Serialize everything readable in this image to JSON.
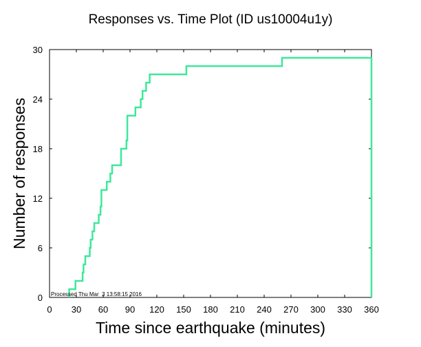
{
  "chart_data": {
    "type": "line",
    "step": true,
    "title": "Responses vs. Time Plot (ID us10004u1y)",
    "xlabel": "Time since earthquake (minutes)",
    "ylabel": "Number of responses",
    "xlim": [
      0,
      360
    ],
    "ylim": [
      0,
      30
    ],
    "xticks": [
      0,
      30,
      60,
      90,
      120,
      150,
      180,
      210,
      240,
      270,
      300,
      330,
      360
    ],
    "yticks": [
      0,
      6,
      12,
      18,
      24,
      30
    ],
    "xtick_labels": [
      "0",
      "30",
      "60",
      "90",
      "120",
      "150",
      "180",
      "210",
      "240",
      "270",
      "300",
      "330",
      "360"
    ],
    "ytick_labels": [
      "0",
      "6",
      "12",
      "18",
      "24",
      "30"
    ],
    "grid": false,
    "line_color": "#3de89a",
    "annotation": "Processed Thu Mar  3 13:58:15 2016",
    "x": [
      22,
      22,
      29,
      29,
      37,
      37,
      38,
      38,
      40,
      40,
      45,
      45,
      46,
      46,
      48,
      48,
      50,
      50,
      55,
      55,
      57,
      57,
      58,
      58,
      64,
      64,
      68,
      68,
      70,
      70,
      80,
      80,
      86,
      86,
      87,
      87,
      88,
      88,
      96,
      96,
      102,
      102,
      104,
      104,
      108,
      108,
      112,
      112,
      120,
      120,
      153,
      153,
      260,
      260,
      360,
      360
    ],
    "y": [
      0,
      1,
      1,
      2,
      2,
      3,
      3,
      4,
      4,
      5,
      5,
      6,
      6,
      7,
      7,
      8,
      8,
      9,
      9,
      10,
      10,
      11,
      11,
      13,
      13,
      14,
      14,
      15,
      15,
      16,
      16,
      18,
      18,
      19,
      19,
      22,
      22,
      22,
      22,
      23,
      23,
      24,
      24,
      25,
      25,
      26,
      26,
      27,
      27,
      27,
      27,
      28,
      28,
      29,
      29,
      0
    ]
  }
}
